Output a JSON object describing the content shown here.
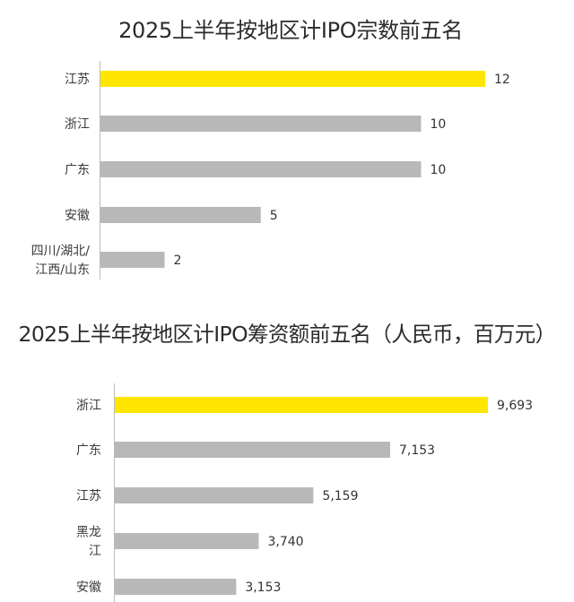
{
  "chart_data": [
    {
      "type": "bar",
      "orientation": "horizontal",
      "title": "2025上半年按地区计IPO宗数前五名",
      "categories": [
        [
          "江苏"
        ],
        [
          "浙江"
        ],
        [
          "广东"
        ],
        [
          "安徽"
        ],
        [
          "四川/湖北/",
          "江西/山东"
        ]
      ],
      "values": [
        12,
        10,
        10,
        5,
        2
      ],
      "value_labels": [
        "12",
        "10",
        "10",
        "5",
        "2"
      ],
      "highlight_index": 0,
      "xlim": [
        0,
        12
      ],
      "grid": false,
      "colors": {
        "highlight": "#FFE600",
        "bar": "#B8B8B8",
        "axis": "#BBBBBB"
      }
    },
    {
      "type": "bar",
      "orientation": "horizontal",
      "title": "2025上半年按地区计IPO筹资额前五名（人民币，百万元）",
      "categories": [
        [
          "浙江"
        ],
        [
          "广东"
        ],
        [
          "江苏"
        ],
        [
          "黑龙",
          "江"
        ],
        [
          "安徽"
        ]
      ],
      "values": [
        9693,
        7153,
        5159,
        3740,
        3153
      ],
      "value_labels": [
        "9,693",
        "7,153",
        "5,159",
        "3,740",
        "3,153"
      ],
      "highlight_index": 0,
      "xlim": [
        0,
        9693
      ],
      "grid": false,
      "colors": {
        "highlight": "#FFE600",
        "bar": "#B8B8B8",
        "axis": "#BBBBBB"
      }
    }
  ]
}
